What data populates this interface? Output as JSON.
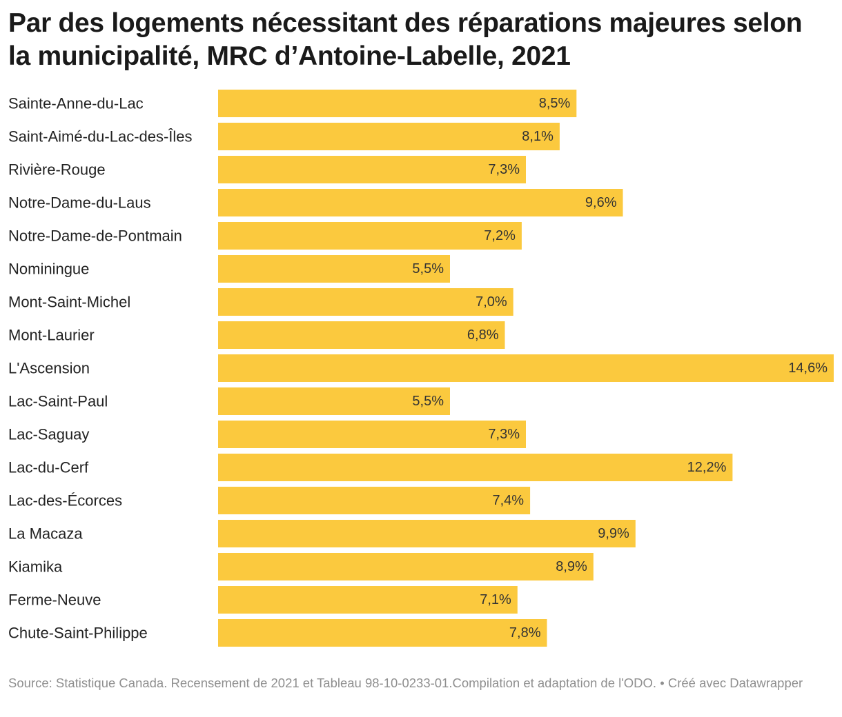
{
  "header": {
    "title": "Par des logements nécessitant des réparations majeures selon la municipalité, MRC d’Antoine-Labelle, 2021"
  },
  "colors": {
    "bar": "#fbc93e",
    "label_text": "#222222",
    "value_text": "#333333",
    "footer_text": "#8f8f8f"
  },
  "chart_data": {
    "type": "bar",
    "orientation": "horizontal",
    "title": "Par des logements nécessitant des réparations majeures selon la municipalité, MRC d’Antoine-Labelle, 2021",
    "categories": [
      "Sainte-Anne-du-Lac",
      "Saint-Aimé-du-Lac-des-Îles",
      "Rivière-Rouge",
      "Notre-Dame-du-Laus",
      "Notre-Dame-de-Pontmain",
      "Nominingue",
      "Mont-Saint-Michel",
      "Mont-Laurier",
      "L'Ascension",
      "Lac-Saint-Paul",
      "Lac-Saguay",
      "Lac-du-Cerf",
      "Lac-des-Écorces",
      "La Macaza",
      "Kiamika",
      "Ferme-Neuve",
      "Chute-Saint-Philippe"
    ],
    "values": [
      8.5,
      8.1,
      7.3,
      9.6,
      7.2,
      5.5,
      7.0,
      6.8,
      14.6,
      5.5,
      7.3,
      12.2,
      7.4,
      9.9,
      8.9,
      7.1,
      7.8
    ],
    "value_labels": [
      "8,5%",
      "8,1%",
      "7,3%",
      "9,6%",
      "7,2%",
      "5,5%",
      "7,0%",
      "6,8%",
      "14,6%",
      "5,5%",
      "7,3%",
      "12,2%",
      "7,4%",
      "9,9%",
      "8,9%",
      "7,1%",
      "7,8%"
    ],
    "unit": "%",
    "xlim": [
      0,
      14.6
    ],
    "xlabel": "",
    "ylabel": "",
    "grid": false,
    "legend": "none"
  },
  "footer": {
    "source": "Source: Statistique Canada. Recensement de 2021 et Tableau 98-10-0233-01.Compilation et adaptation de l'ODO. • Créé avec Datawrapper"
  }
}
